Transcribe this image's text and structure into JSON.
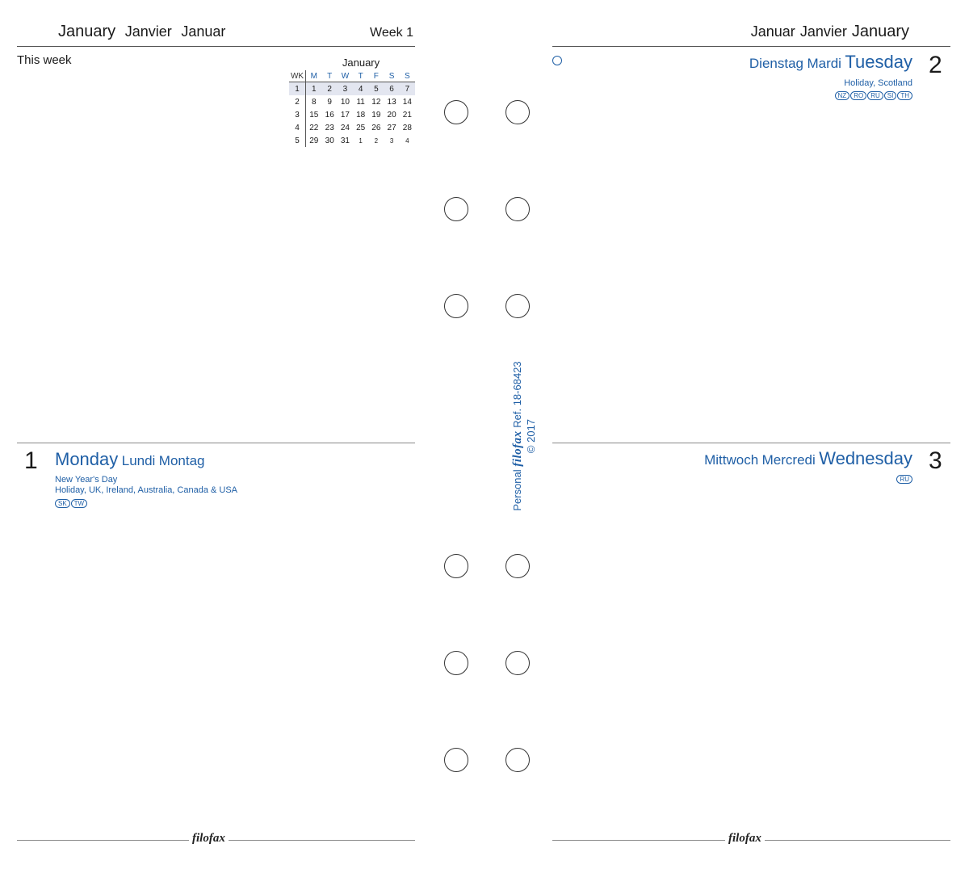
{
  "left_page": {
    "header": {
      "en": "January",
      "fr": "Janvier",
      "de": "Januar"
    },
    "week_label": "Week 1",
    "this_week_label": "This week",
    "mini_calendar": {
      "title": "January",
      "headers": [
        "WK",
        "M",
        "T",
        "W",
        "T",
        "F",
        "S",
        "S"
      ],
      "rows": [
        [
          "1",
          "1",
          "2",
          "3",
          "4",
          "5",
          "6",
          "7"
        ],
        [
          "2",
          "8",
          "9",
          "10",
          "11",
          "12",
          "13",
          "14"
        ],
        [
          "3",
          "15",
          "16",
          "17",
          "18",
          "19",
          "20",
          "21"
        ],
        [
          "4",
          "22",
          "23",
          "24",
          "25",
          "26",
          "27",
          "28"
        ],
        [
          "5",
          "29",
          "30",
          "31",
          "1",
          "2",
          "3",
          "4"
        ]
      ]
    },
    "monday": {
      "number": "1",
      "name_en": "Monday",
      "name_fr": "Lundi",
      "name_de": "Montag",
      "note1": "New Year's Day",
      "note2": "Holiday, UK, Ireland, Australia, Canada & USA",
      "badges": [
        "SK",
        "TW"
      ]
    },
    "footer_logo": "filofax"
  },
  "right_page": {
    "header": {
      "de": "Januar",
      "fr": "Janvier",
      "en": "January"
    },
    "tuesday": {
      "number": "2",
      "name_de": "Dienstag",
      "name_fr": "Mardi",
      "name_en": "Tuesday",
      "note": "Holiday, Scotland",
      "badges": [
        "NZ",
        "RO",
        "RU",
        "SI",
        "TH"
      ]
    },
    "wednesday": {
      "number": "3",
      "name_de": "Mittwoch",
      "name_fr": "Mercredi",
      "name_en": "Wednesday",
      "badges": [
        "RU"
      ]
    },
    "footer_logo": "filofax"
  },
  "spine": {
    "line1_prefix": "Personal",
    "brand": "filofax",
    "line1_suffix": "Ref. 18-68423",
    "line2": "© 2017"
  },
  "colors": {
    "accent": "#1f5fa6",
    "rule": "#555555"
  }
}
